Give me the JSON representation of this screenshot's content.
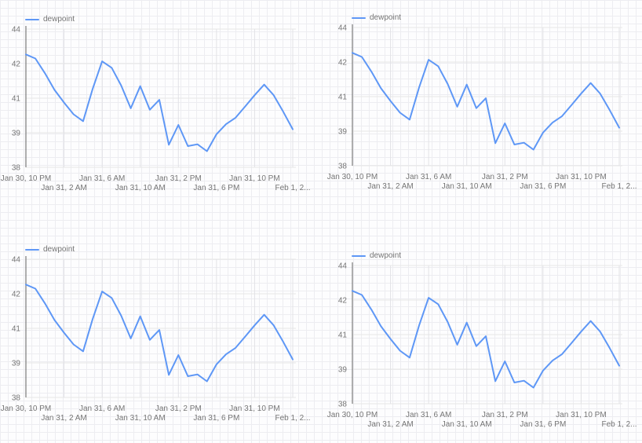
{
  "canvas": {
    "background": "#fdfdfe",
    "grid_color": "#ededf1"
  },
  "colors": {
    "series_line": "#5e97f6",
    "label_text": "#757575",
    "axis_line": "#8c8c8c",
    "chart_grid_h": "#e6e6e6",
    "chart_grid_v": "#e2e2e6"
  },
  "chart_data": [
    {
      "type": "line",
      "title": "",
      "legend": "dewpoint",
      "legend_position": "top-left",
      "grid": true,
      "ylim": [
        38,
        44
      ],
      "y_tick_labels": [
        "44",
        "42",
        "41",
        "39",
        "38"
      ],
      "x_tick_labels": [
        "Jan 30, 10 PM",
        "Jan 31, 2 AM",
        "Jan 31, 6 AM",
        "Jan 31, 10 AM",
        "Jan 31, 2 PM",
        "Jan 31, 6 PM",
        "Jan 31, 10 PM",
        "Feb 1, 2..."
      ],
      "x_hours_per_tick": 4,
      "series": [
        {
          "name": "dewpoint",
          "values": [
            42.9,
            42.72,
            42.08,
            41.36,
            40.81,
            40.3,
            40.0,
            41.4,
            42.6,
            42.32,
            41.55,
            40.56,
            41.52,
            40.5,
            40.93,
            38.98,
            39.84,
            38.92,
            39.0,
            38.7,
            39.44,
            39.87,
            40.15,
            40.64,
            41.13,
            41.59,
            41.13,
            40.41,
            39.65
          ]
        }
      ]
    },
    {
      "type": "line",
      "title": "",
      "legend": "dewpoint",
      "legend_position": "top-left",
      "grid": true,
      "ylim": [
        38,
        44
      ],
      "y_tick_labels": [
        "44",
        "42",
        "41",
        "39",
        "38"
      ],
      "x_tick_labels": [
        "Jan 30, 10 PM",
        "Jan 31, 2 AM",
        "Jan 31, 6 AM",
        "Jan 31, 10 AM",
        "Jan 31, 2 PM",
        "Jan 31, 6 PM",
        "Jan 31, 10 PM",
        "Feb 1, 2..."
      ],
      "x_hours_per_tick": 4,
      "series": [
        {
          "name": "dewpoint",
          "values": [
            42.9,
            42.72,
            42.08,
            41.36,
            40.81,
            40.3,
            40.0,
            41.4,
            42.6,
            42.32,
            41.55,
            40.56,
            41.52,
            40.5,
            40.93,
            38.98,
            39.84,
            38.92,
            39.0,
            38.7,
            39.44,
            39.87,
            40.15,
            40.64,
            41.13,
            41.59,
            41.13,
            40.41,
            39.65
          ]
        }
      ]
    },
    {
      "type": "line",
      "title": "",
      "legend": "dewpoint",
      "legend_position": "top-left",
      "grid": true,
      "ylim": [
        38,
        44
      ],
      "y_tick_labels": [
        "44",
        "42",
        "41",
        "39",
        "38"
      ],
      "x_tick_labels": [
        "Jan 30, 10 PM",
        "Jan 31, 2 AM",
        "Jan 31, 6 AM",
        "Jan 31, 10 AM",
        "Jan 31, 2 PM",
        "Jan 31, 6 PM",
        "Jan 31, 10 PM",
        "Feb 1, 2..."
      ],
      "x_hours_per_tick": 4,
      "series": [
        {
          "name": "dewpoint",
          "values": [
            42.9,
            42.72,
            42.08,
            41.36,
            40.81,
            40.3,
            40.0,
            41.4,
            42.6,
            42.32,
            41.55,
            40.56,
            41.52,
            40.5,
            40.93,
            38.98,
            39.84,
            38.92,
            39.0,
            38.7,
            39.44,
            39.87,
            40.15,
            40.64,
            41.13,
            41.59,
            41.13,
            40.41,
            39.65
          ]
        }
      ]
    },
    {
      "type": "line",
      "title": "",
      "legend": "dewpoint",
      "legend_position": "top-left",
      "grid": true,
      "ylim": [
        38,
        44
      ],
      "y_tick_labels": [
        "44",
        "42",
        "41",
        "39",
        "38"
      ],
      "x_tick_labels": [
        "Jan 30, 10 PM",
        "Jan 31, 2 AM",
        "Jan 31, 6 AM",
        "Jan 31, 10 AM",
        "Jan 31, 2 PM",
        "Jan 31, 6 PM",
        "Jan 31, 10 PM",
        "Feb 1, 2..."
      ],
      "x_hours_per_tick": 4,
      "series": [
        {
          "name": "dewpoint",
          "values": [
            42.9,
            42.72,
            42.08,
            41.36,
            40.81,
            40.3,
            40.0,
            41.4,
            42.6,
            42.32,
            41.55,
            40.56,
            41.52,
            40.5,
            40.93,
            38.98,
            39.84,
            38.92,
            39.0,
            38.7,
            39.44,
            39.87,
            40.15,
            40.64,
            41.13,
            41.59,
            41.13,
            40.41,
            39.65
          ]
        }
      ]
    }
  ]
}
